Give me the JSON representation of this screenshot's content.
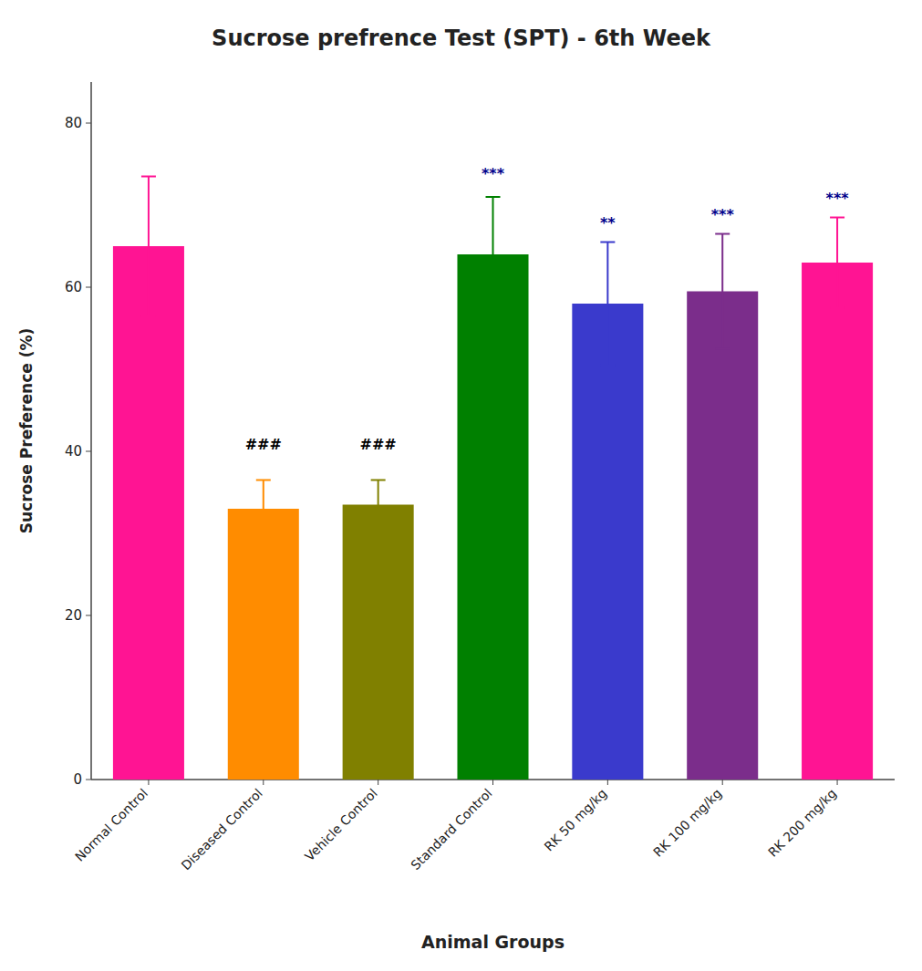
{
  "chart_data": {
    "type": "bar",
    "title": "Sucrose prefrence Test (SPT) - 6th Week",
    "xlabel": "Animal Groups",
    "ylabel": "Sucrose Preference (%)",
    "categories": [
      "Normal Control",
      "Diseased Control",
      "Vehicle Control",
      "Standard Control",
      "RK 50 mg/kg",
      "RK 100 mg/kg",
      "RK 200 mg/kg"
    ],
    "values": [
      65.0,
      33.0,
      33.5,
      64.0,
      58.0,
      59.5,
      63.0
    ],
    "errors": [
      8.5,
      3.5,
      3.0,
      7.0,
      7.5,
      7.0,
      5.5
    ],
    "colors": [
      "#FF1493",
      "#FF8C00",
      "#808000",
      "#008000",
      "#3A3ACC",
      "#7B2D8B",
      "#FF1493"
    ],
    "ylim": [
      0,
      85
    ],
    "yticks": [
      0,
      20,
      40,
      60,
      80
    ],
    "grid": false,
    "annotations": [
      {
        "text": "###",
        "x": "Diseased Control",
        "y": 40,
        "color": "#000000"
      },
      {
        "text": "###",
        "x": "Vehicle Control",
        "y": 40,
        "color": "#000000"
      },
      {
        "text": "***",
        "x": "Standard Control",
        "y": 73,
        "color": "#00008B"
      },
      {
        "text": "**",
        "x": "RK 50 mg/kg",
        "y": 67,
        "color": "#00008B"
      },
      {
        "text": "***",
        "x": "RK 100 mg/kg",
        "y": 68,
        "color": "#00008B"
      },
      {
        "text": "***",
        "x": "RK 200 mg/kg",
        "y": 70,
        "color": "#00008B"
      }
    ]
  }
}
